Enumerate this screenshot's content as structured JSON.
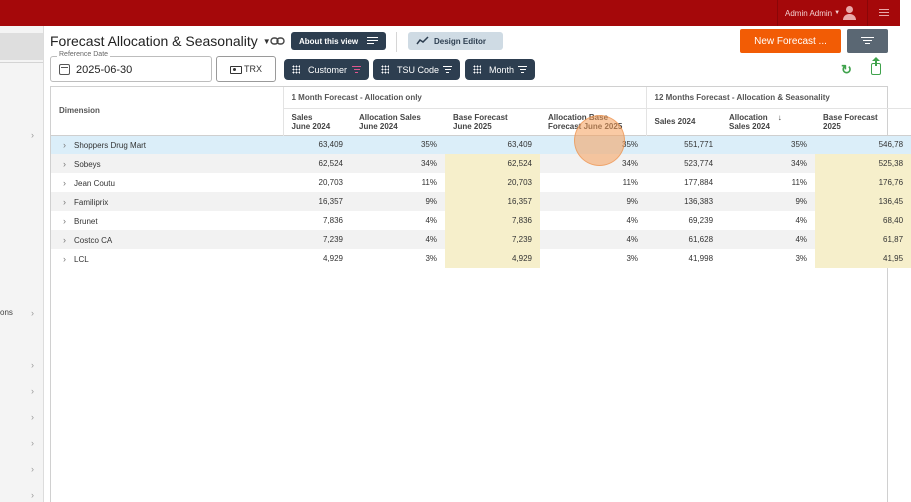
{
  "topbar": {
    "user_name": "Admin Admin",
    "brand_color": "#a5080a"
  },
  "sidebar": {
    "partial_label": "ons"
  },
  "header": {
    "title": "Forecast Allocation & Seasonality",
    "about_label": "About this view",
    "design_label": "Design Editor",
    "new_forecast_label": "New Forecast ...",
    "accent_color": "#f25c05"
  },
  "toolbar": {
    "ref_date_label": "Reference Date",
    "ref_date_value": "2025-06-30",
    "trx_label": "TRX",
    "pills": [
      "Customer",
      "TSU Code",
      "Month"
    ]
  },
  "table": {
    "dimension_header": "Dimension",
    "group_1": "1 Month Forecast - Allocation only",
    "group_2": "12 Months Forecast - Allocation & Seasonality",
    "columns": [
      [
        "Sales",
        "June 2024"
      ],
      [
        "Allocation Sales",
        "June 2024"
      ],
      [
        "Base Forecast",
        "June 2025"
      ],
      [
        "Allocation Base",
        "Forecast June 2025"
      ],
      [
        "Sales 2024",
        ""
      ],
      [
        "Allocation",
        "Sales 2024"
      ],
      [
        "Base Forecast",
        "2025"
      ]
    ],
    "rows": [
      {
        "name": "Shoppers Drug Mart",
        "values": [
          "63,409",
          "35%",
          "63,409",
          "35%",
          "551,771",
          "35%",
          "546,78"
        ]
      },
      {
        "name": "Sobeys",
        "values": [
          "62,524",
          "34%",
          "62,524",
          "34%",
          "523,774",
          "34%",
          "525,38"
        ]
      },
      {
        "name": "Jean Coutu",
        "values": [
          "20,703",
          "11%",
          "20,703",
          "11%",
          "177,884",
          "11%",
          "176,76"
        ]
      },
      {
        "name": "Familiprix",
        "values": [
          "16,357",
          "9%",
          "16,357",
          "9%",
          "136,383",
          "9%",
          "136,45"
        ]
      },
      {
        "name": "Brunet",
        "values": [
          "7,836",
          "4%",
          "7,836",
          "4%",
          "69,239",
          "4%",
          "68,40"
        ]
      },
      {
        "name": "Costco CA",
        "values": [
          "7,239",
          "4%",
          "7,239",
          "4%",
          "61,628",
          "4%",
          "61,87"
        ]
      },
      {
        "name": "LCL",
        "values": [
          "4,929",
          "3%",
          "4,929",
          "3%",
          "41,998",
          "3%",
          "41,95"
        ]
      }
    ]
  }
}
